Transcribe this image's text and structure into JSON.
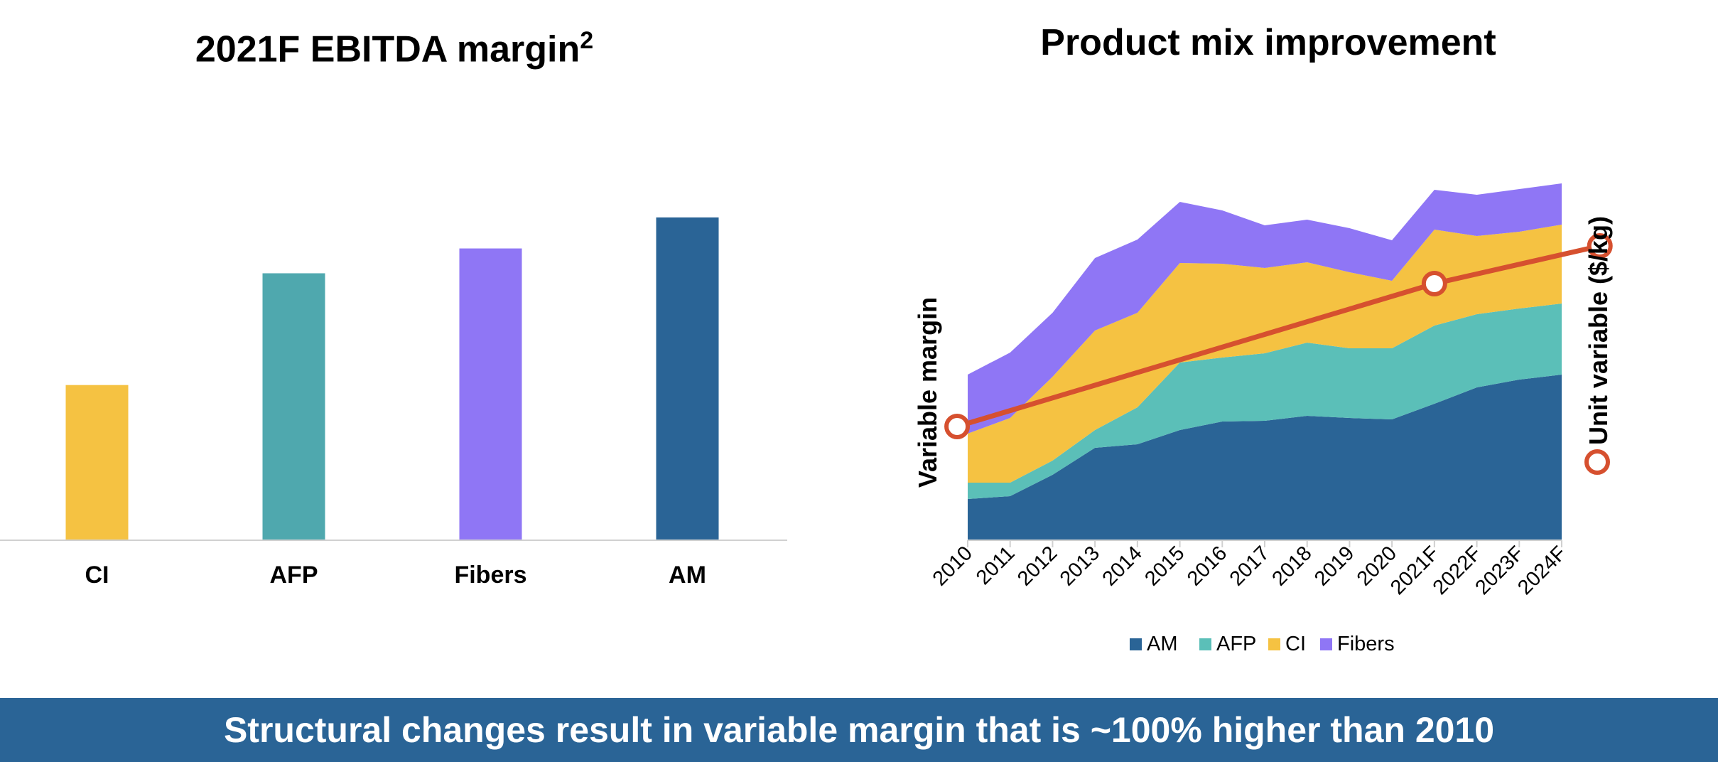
{
  "footer": {
    "text": "Structural changes result in variable margin that is ~100% higher than 2010"
  },
  "chart_data": [
    {
      "type": "bar",
      "title": "2021F EBITDA margin",
      "title_superscript": "2",
      "categories": [
        "CI",
        "AFP",
        "Fibers",
        "AM"
      ],
      "values": [
        25,
        43,
        47,
        52
      ],
      "colors": [
        "#f5c242",
        "#4fa8ae",
        "#8f76f5",
        "#2a6496"
      ],
      "ylim": [
        0,
        60
      ],
      "grid": false
    },
    {
      "type": "area",
      "title": "Product mix improvement",
      "ylabel": "Variable margin",
      "y2label": "Unit variable ($/kg)",
      "x": [
        "2010",
        "2011",
        "2012",
        "2013",
        "2014",
        "2015",
        "2016",
        "2017",
        "2018",
        "2019",
        "2020",
        "2021F",
        "2022F",
        "2023F",
        "2024F"
      ],
      "series": [
        {
          "name": "AM",
          "color": "#2a6496",
          "values": [
            58,
            62,
            92,
            130,
            135,
            155,
            167,
            168,
            175,
            172,
            170,
            192,
            215,
            226,
            233
          ]
        },
        {
          "name": "AFP",
          "color": "#5bbfb8",
          "values": [
            23,
            19,
            20,
            25,
            52,
            95,
            90,
            95,
            103,
            98,
            100,
            110,
            103,
            100,
            100
          ]
        },
        {
          "name": "CI",
          "color": "#f5c242",
          "values": [
            69,
            91,
            118,
            140,
            133,
            140,
            132,
            120,
            113,
            107,
            95,
            135,
            110,
            108,
            111
          ]
        },
        {
          "name": "Fibers",
          "color": "#8f76f5",
          "values": [
            83,
            92,
            90,
            102,
            103,
            86,
            75,
            60,
            60,
            62,
            57,
            56,
            58,
            60,
            58
          ]
        }
      ],
      "ylim": [
        0,
        560
      ],
      "line_series": {
        "name": "Unit variable ($/kg)",
        "color": "#d6502f",
        "x": [
          2009.75,
          2021.0,
          2024.9
        ],
        "values": [
          160,
          361,
          414
        ],
        "markers": [
          true,
          true,
          true
        ]
      },
      "legend": "bottom",
      "grid": false
    }
  ]
}
